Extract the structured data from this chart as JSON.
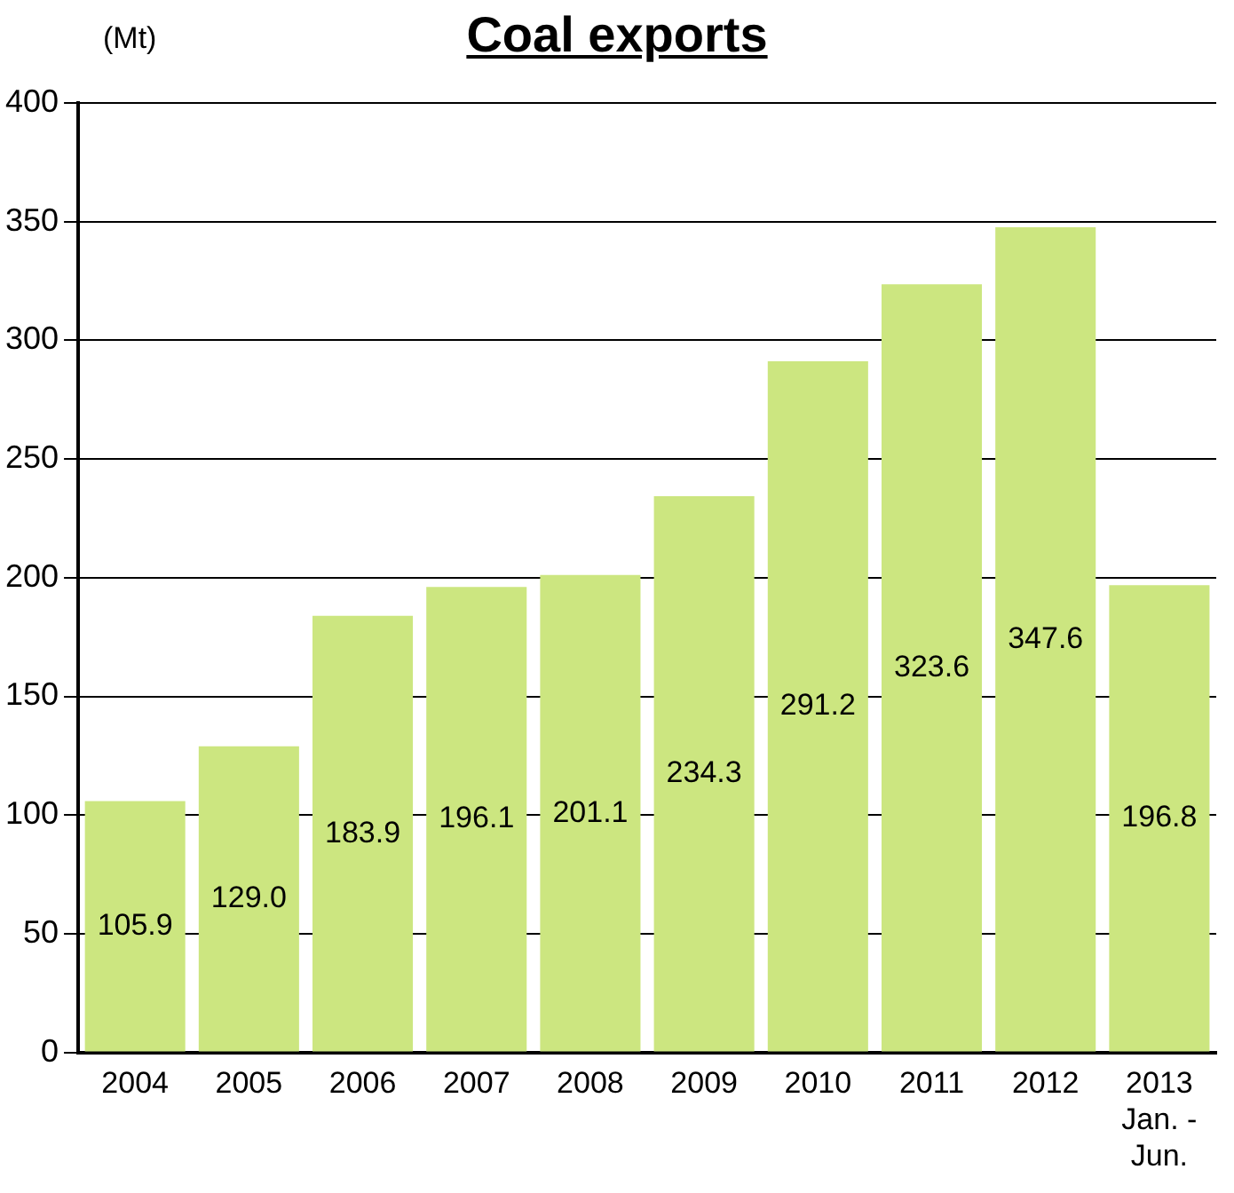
{
  "chart_data": {
    "type": "bar",
    "title": "Coal exports",
    "ylabel": "(Mt)",
    "categories": [
      "2004",
      "2005",
      "2006",
      "2007",
      "2008",
      "2009",
      "2010",
      "2011",
      "2012",
      "2013\nJan. -\nJun."
    ],
    "values": [
      105.9,
      129.0,
      183.9,
      196.1,
      201.1,
      234.3,
      291.2,
      323.6,
      347.6,
      196.8
    ],
    "value_labels": [
      "105.9",
      "129.0",
      "183.9",
      "196.1",
      "201.1",
      "234.3",
      "291.2",
      "323.6",
      "347.6",
      "196.8"
    ],
    "color": "#cce680",
    "ylim": [
      0,
      400
    ],
    "yticks": [
      0,
      50,
      100,
      150,
      200,
      250,
      300,
      350,
      400
    ],
    "grid": "y"
  }
}
